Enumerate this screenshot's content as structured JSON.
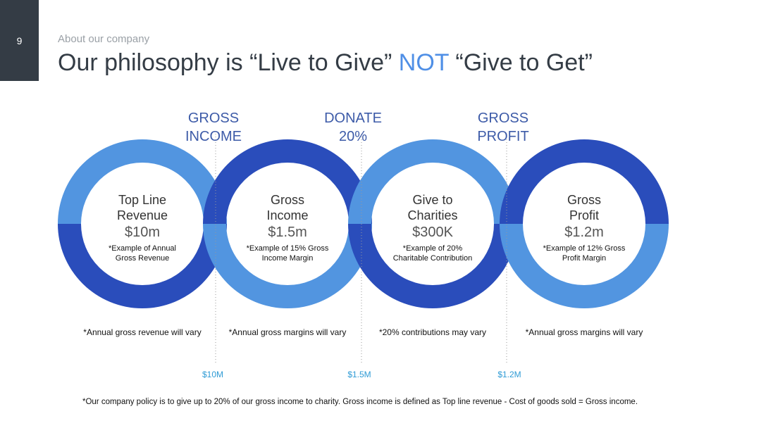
{
  "slide": {
    "page_number": "9",
    "kicker": "About our company",
    "title_part1": "Our philosophy is “Live to Give” ",
    "title_accent": "NOT",
    "title_part2": " “Give to Get”"
  },
  "top_labels": [
    {
      "line1": "GROSS",
      "line2": "INCOME"
    },
    {
      "line1": "DONATE",
      "line2": "20%"
    },
    {
      "line1": "GROSS",
      "line2": "PROFIT"
    }
  ],
  "circles": [
    {
      "title1": "Top Line",
      "title2": "Revenue",
      "value": "$10m",
      "note1": "*Example of Annual",
      "note2": "Gross Revenue",
      "bottom_note": "*Annual gross revenue will vary"
    },
    {
      "title1": "Gross",
      "title2": "Income",
      "value": "$1.5m",
      "note1": "*Example of 15% Gross",
      "note2": "Income Margin",
      "bottom_note": "*Annual gross margins will vary"
    },
    {
      "title1": "Give to",
      "title2": "Charities",
      "value": "$300K",
      "note1": "*Example of 20%",
      "note2": "Charitable Contribution",
      "bottom_note": "*20% contributions may vary"
    },
    {
      "title1": "Gross",
      "title2": "Profit",
      "value": "$1.2m",
      "note1": "*Example of 12% Gross",
      "note2": "Profit Margin",
      "bottom_note": "*Annual gross margins will vary"
    }
  ],
  "amounts": [
    "$10M",
    "$1.5M",
    "$1.2M"
  ],
  "footer": "*Our company policy is to give up to 20% of our gross income to charity. Gross income is defined as Top line revenue - Cost of goods sold = Gross income.",
  "colors": {
    "light": "#5295e0",
    "dark": "#2a4dbb"
  }
}
